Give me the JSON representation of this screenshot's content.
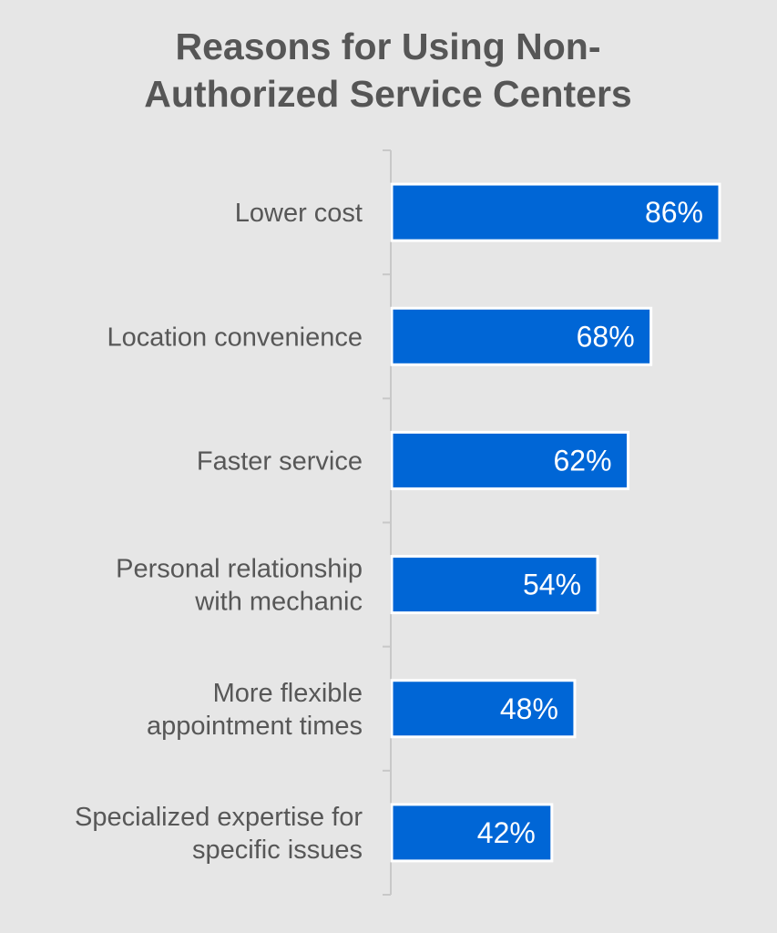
{
  "chart_data": {
    "type": "bar",
    "orientation": "horizontal",
    "title": [
      "Reasons for Using Non-",
      "Authorized Service Centers"
    ],
    "categories": [
      [
        "Lower cost"
      ],
      [
        "Location convenience"
      ],
      [
        "Faster service"
      ],
      [
        "Personal relationship",
        "with mechanic"
      ],
      [
        "More flexible",
        "appointment times"
      ],
      [
        "Specialized expertise for",
        "specific issues"
      ]
    ],
    "values": [
      86,
      68,
      62,
      54,
      48,
      42
    ],
    "value_labels": [
      "86%",
      "68%",
      "62%",
      "54%",
      "48%",
      "42%"
    ],
    "unit": "%",
    "xlim": [
      0,
      100
    ],
    "grid": false,
    "legend": "none",
    "colors": {
      "bar": "#0066d6",
      "bar_outline": "#ffffff",
      "background": "#e6e6e6",
      "text": "#575757",
      "axis": "#c8c8c8"
    }
  }
}
